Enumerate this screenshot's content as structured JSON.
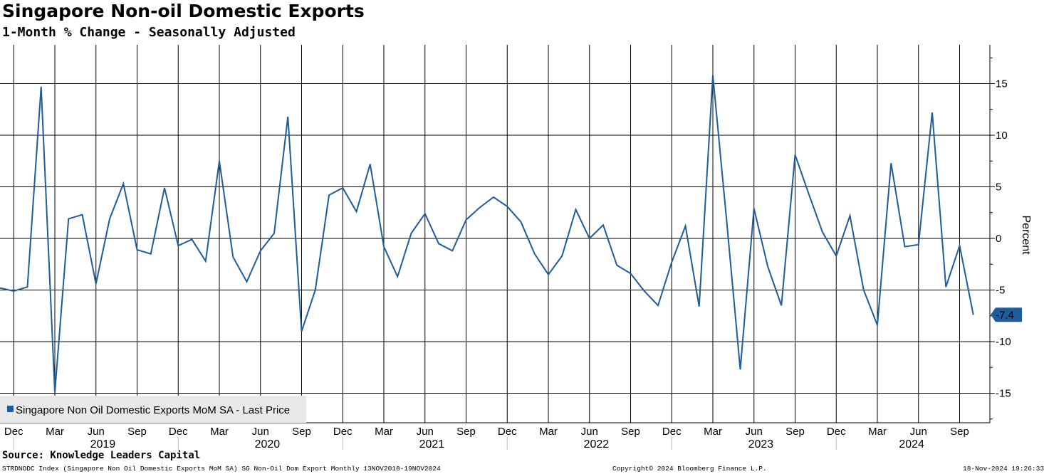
{
  "header": {
    "title": "Singapore Non-oil Domestic Exports",
    "subtitle": "1-Month % Change - Seasonally Adjusted"
  },
  "footer": {
    "source": "Source: Knowledge Leaders Capital",
    "index_info": "STRDNODC Index (Singapore Non Oil Domestic Exports MoM SA) SG Non-Oil Dom Export  Monthly 13NOV2018-19NOV2024",
    "copyright": "Copyright© 2024 Bloomberg Finance L.P.",
    "timestamp": "18-Nov-2024 19:26:33"
  },
  "colors": {
    "series": "#1f5c99",
    "grid": "#000000"
  },
  "chart_data": {
    "type": "line",
    "title": "Singapore Non-oil Domestic Exports",
    "subtitle": "1-Month % Change - Seasonally Adjusted",
    "ylabel": "Percent",
    "ylim": [
      -17.5,
      18.5
    ],
    "yticks": [
      -15,
      -10,
      -5,
      0,
      5,
      10,
      15
    ],
    "grid": true,
    "legend": {
      "label": "Singapore Non Oil Domestic Exports MoM SA - Last Price",
      "position": "bottom-left"
    },
    "last_value_label": "-7.4",
    "month_ticks": [
      "Dec",
      "Mar",
      "Jun",
      "Sep",
      "Dec",
      "Mar",
      "Jun",
      "Sep",
      "Dec",
      "Mar",
      "Jun",
      "Sep",
      "Dec",
      "Mar",
      "Jun",
      "Sep",
      "Dec",
      "Mar",
      "Jun",
      "Sep",
      "Dec",
      "Mar",
      "Jun",
      "Sep"
    ],
    "year_labels": [
      "2019",
      "2020",
      "2021",
      "2022",
      "2023",
      "2024"
    ],
    "series": [
      {
        "name": "Singapore Non Oil Domestic Exports MoM SA - Last Price",
        "start": "2018-11",
        "end": "2024-10",
        "x": [
          "2018-11",
          "2018-12",
          "2019-01",
          "2019-02",
          "2019-03",
          "2019-04",
          "2019-05",
          "2019-06",
          "2019-07",
          "2019-08",
          "2019-09",
          "2019-10",
          "2019-11",
          "2019-12",
          "2020-01",
          "2020-02",
          "2020-03",
          "2020-04",
          "2020-05",
          "2020-06",
          "2020-07",
          "2020-08",
          "2020-09",
          "2020-10",
          "2020-11",
          "2020-12",
          "2021-01",
          "2021-02",
          "2021-03",
          "2021-04",
          "2021-05",
          "2021-06",
          "2021-07",
          "2021-08",
          "2021-09",
          "2021-10",
          "2021-11",
          "2021-12",
          "2022-01",
          "2022-02",
          "2022-03",
          "2022-04",
          "2022-05",
          "2022-06",
          "2022-07",
          "2022-08",
          "2022-09",
          "2022-10",
          "2022-11",
          "2022-12",
          "2023-01",
          "2023-02",
          "2023-03",
          "2023-04",
          "2023-05",
          "2023-06",
          "2023-07",
          "2023-08",
          "2023-09",
          "2023-10",
          "2023-11",
          "2023-12",
          "2024-01",
          "2024-02",
          "2024-03",
          "2024-04",
          "2024-05",
          "2024-06",
          "2024-07",
          "2024-08",
          "2024-09",
          "2024-10"
        ],
        "values": [
          -4.8,
          -5.1,
          -4.7,
          14.7,
          -14.9,
          1.9,
          2.3,
          -4.4,
          1.9,
          5.3,
          -1.1,
          -1.5,
          4.9,
          -0.7,
          -0.1,
          -2.2,
          7.5,
          -1.8,
          -4.2,
          -1.2,
          0.5,
          11.8,
          -9.0,
          -5.0,
          4.2,
          4.9,
          2.6,
          7.2,
          -0.8,
          -3.7,
          0.5,
          2.4,
          -0.5,
          -1.2,
          1.8,
          3.0,
          4.0,
          3.1,
          1.6,
          -1.5,
          -3.5,
          -1.7,
          2.8,
          0.0,
          1.3,
          -2.6,
          -3.4,
          -5.1,
          -6.5,
          -2.3,
          1.2,
          -6.6,
          15.8,
          1.8,
          -12.7,
          2.9,
          -2.7,
          -6.5,
          8.1,
          4.3,
          0.6,
          -1.7,
          2.2,
          -5.0,
          -8.4,
          7.3,
          -0.8,
          -0.6,
          12.2,
          -4.7,
          -0.7,
          -7.4
        ]
      }
    ]
  }
}
